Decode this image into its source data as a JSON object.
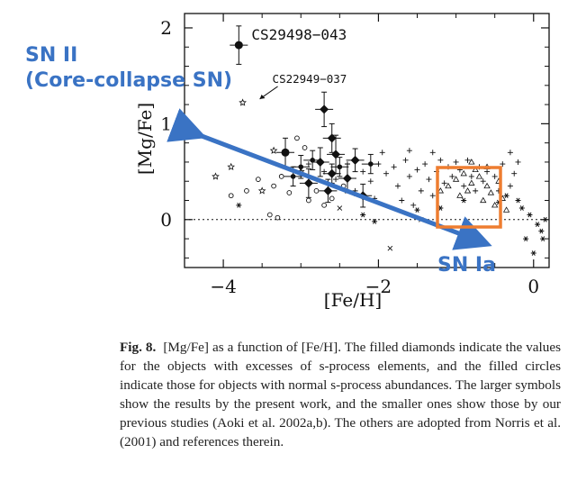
{
  "chart_data": {
    "type": "scatter",
    "title": "",
    "xlabel": "[Fe/H]",
    "ylabel": "[Mg/Fe]",
    "xlim": [
      -4.5,
      0.2
    ],
    "ylim": [
      -0.5,
      2.15
    ],
    "x_ticks": [
      -4,
      -2,
      0
    ],
    "y_ticks": [
      0,
      1,
      2
    ],
    "x_tick_labels": [
      "−4",
      "−2",
      "0"
    ],
    "y_tick_labels": [
      "0",
      "1",
      "2"
    ],
    "reference_line_y": 0,
    "star_labels": [
      {
        "text": "CS29498−043",
        "x": -3.8,
        "y": 1.82
      },
      {
        "text": "CS22949−037",
        "x": -3.6,
        "y": 1.22
      }
    ],
    "series": [
      {
        "marker": "filled-diamond",
        "points": [
          {
            "x": -2.7,
            "y": 1.15,
            "err": 0.18
          },
          {
            "x": -2.6,
            "y": 0.85,
            "err": 0.15
          },
          {
            "x": -2.55,
            "y": 0.68,
            "err": 0.2
          },
          {
            "x": -2.75,
            "y": 0.6,
            "err": 0.15
          },
          {
            "x": -2.3,
            "y": 0.62,
            "err": 0.12
          },
          {
            "x": -2.4,
            "y": 0.43,
            "err": 0.15
          },
          {
            "x": -2.6,
            "y": 0.48,
            "err": 0.1
          },
          {
            "x": -2.9,
            "y": 0.38,
            "err": 0.15
          },
          {
            "x": -2.65,
            "y": 0.3,
            "err": 0.12
          },
          {
            "x": -2.2,
            "y": 0.25,
            "err": 0.12
          }
        ]
      },
      {
        "marker": "filled-circle-large",
        "points": [
          {
            "x": -3.8,
            "y": 1.82,
            "err": 0.2
          },
          {
            "x": -3.2,
            "y": 0.7,
            "err": 0.15
          }
        ]
      },
      {
        "marker": "filled-circle-small",
        "points": [
          {
            "x": -3.0,
            "y": 0.55,
            "err": 0.12
          },
          {
            "x": -2.85,
            "y": 0.62,
            "err": 0.1
          },
          {
            "x": -2.5,
            "y": 0.55,
            "err": 0.1
          },
          {
            "x": -2.1,
            "y": 0.58,
            "err": 0.1
          },
          {
            "x": -3.1,
            "y": 0.45,
            "err": 0.1
          }
        ]
      },
      {
        "marker": "open-circle",
        "points": [
          {
            "x": -3.9,
            "y": 0.25
          },
          {
            "x": -3.7,
            "y": 0.3
          },
          {
            "x": -3.55,
            "y": 0.42
          },
          {
            "x": -3.35,
            "y": 0.35
          },
          {
            "x": -3.25,
            "y": 0.45
          },
          {
            "x": -3.05,
            "y": 0.85
          },
          {
            "x": -2.95,
            "y": 0.75
          },
          {
            "x": -2.9,
            "y": 0.2
          },
          {
            "x": -2.8,
            "y": 0.3
          },
          {
            "x": -3.4,
            "y": 0.05
          },
          {
            "x": -3.3,
            "y": 0.02
          },
          {
            "x": -2.7,
            "y": 0.15
          },
          {
            "x": -2.6,
            "y": 0.22
          },
          {
            "x": -2.45,
            "y": 0.35
          },
          {
            "x": -3.15,
            "y": 0.28
          }
        ]
      },
      {
        "marker": "open-star",
        "points": [
          {
            "x": -3.75,
            "y": 1.22
          },
          {
            "x": -4.1,
            "y": 0.45
          },
          {
            "x": -3.9,
            "y": 0.55
          },
          {
            "x": -3.5,
            "y": 0.3
          },
          {
            "x": -3.35,
            "y": 0.72
          },
          {
            "x": -3.0,
            "y": 0.5
          }
        ]
      },
      {
        "marker": "open-triangle",
        "points": [
          {
            "x": -1.0,
            "y": 0.42
          },
          {
            "x": -0.9,
            "y": 0.48
          },
          {
            "x": -0.8,
            "y": 0.38
          },
          {
            "x": -0.7,
            "y": 0.45
          },
          {
            "x": -0.6,
            "y": 0.35
          },
          {
            "x": -0.85,
            "y": 0.3
          },
          {
            "x": -0.75,
            "y": 0.52
          },
          {
            "x": -0.55,
            "y": 0.28
          },
          {
            "x": -0.65,
            "y": 0.2
          },
          {
            "x": -0.95,
            "y": 0.25
          },
          {
            "x": -0.45,
            "y": 0.4
          },
          {
            "x": -0.5,
            "y": 0.15
          },
          {
            "x": -1.1,
            "y": 0.35
          },
          {
            "x": -0.4,
            "y": 0.22
          },
          {
            "x": -0.35,
            "y": 0.1
          },
          {
            "x": -0.8,
            "y": 0.6
          },
          {
            "x": -0.6,
            "y": 0.55
          },
          {
            "x": -1.2,
            "y": 0.3
          }
        ]
      },
      {
        "marker": "plus",
        "points": [
          {
            "x": -2.9,
            "y": 0.58
          },
          {
            "x": -2.7,
            "y": 0.5
          },
          {
            "x": -2.55,
            "y": 0.42
          },
          {
            "x": -2.4,
            "y": 0.58
          },
          {
            "x": -2.2,
            "y": 0.5
          },
          {
            "x": -2.1,
            "y": 0.4
          },
          {
            "x": -2.0,
            "y": 0.58
          },
          {
            "x": -1.9,
            "y": 0.48
          },
          {
            "x": -1.8,
            "y": 0.55
          },
          {
            "x": -1.75,
            "y": 0.35
          },
          {
            "x": -1.65,
            "y": 0.62
          },
          {
            "x": -1.6,
            "y": 0.45
          },
          {
            "x": -1.5,
            "y": 0.52
          },
          {
            "x": -1.45,
            "y": 0.3
          },
          {
            "x": -1.4,
            "y": 0.58
          },
          {
            "x": -1.35,
            "y": 0.42
          },
          {
            "x": -1.3,
            "y": 0.25
          },
          {
            "x": -1.25,
            "y": 0.5
          },
          {
            "x": -1.2,
            "y": 0.62
          },
          {
            "x": -1.15,
            "y": 0.38
          },
          {
            "x": -1.1,
            "y": 0.55
          },
          {
            "x": -1.05,
            "y": 0.45
          },
          {
            "x": -1.0,
            "y": 0.6
          },
          {
            "x": -0.95,
            "y": 0.52
          },
          {
            "x": -0.9,
            "y": 0.35
          },
          {
            "x": -0.85,
            "y": 0.62
          },
          {
            "x": -0.8,
            "y": 0.45
          },
          {
            "x": -0.75,
            "y": 0.3
          },
          {
            "x": -0.7,
            "y": 0.55
          },
          {
            "x": -0.65,
            "y": 0.4
          },
          {
            "x": -0.6,
            "y": 0.5
          },
          {
            "x": -0.5,
            "y": 0.45
          },
          {
            "x": -0.45,
            "y": 0.3
          },
          {
            "x": -0.4,
            "y": 0.58
          },
          {
            "x": -0.3,
            "y": 0.35
          },
          {
            "x": -0.25,
            "y": 0.48
          },
          {
            "x": -1.7,
            "y": 0.2
          },
          {
            "x": -1.55,
            "y": 0.15
          },
          {
            "x": -2.3,
            "y": 0.3
          },
          {
            "x": -2.05,
            "y": 0.22
          },
          {
            "x": -1.95,
            "y": 0.7
          },
          {
            "x": -1.6,
            "y": 0.72
          },
          {
            "x": -0.3,
            "y": 0.7
          },
          {
            "x": -0.2,
            "y": 0.6
          },
          {
            "x": -1.3,
            "y": 0.7
          }
        ]
      },
      {
        "marker": "asterisk",
        "points": [
          {
            "x": -3.8,
            "y": 0.15
          },
          {
            "x": -2.2,
            "y": 0.05
          },
          {
            "x": -2.05,
            "y": -0.02
          },
          {
            "x": -1.5,
            "y": 0.1
          },
          {
            "x": -1.2,
            "y": 0.12
          },
          {
            "x": -0.9,
            "y": 0.2
          },
          {
            "x": -0.2,
            "y": 0.2
          },
          {
            "x": -0.15,
            "y": 0.12
          },
          {
            "x": -0.05,
            "y": 0.05
          },
          {
            "x": 0.05,
            "y": -0.05
          },
          {
            "x": 0.1,
            "y": -0.12
          },
          {
            "x": 0.15,
            "y": 0.0
          },
          {
            "x": -0.1,
            "y": -0.2
          },
          {
            "x": 0.0,
            "y": -0.35
          },
          {
            "x": -0.35,
            "y": 0.25
          },
          {
            "x": -0.45,
            "y": 0.18
          },
          {
            "x": 0.12,
            "y": -0.2
          }
        ]
      },
      {
        "marker": "cross",
        "points": [
          {
            "x": -1.85,
            "y": -0.3
          },
          {
            "x": -1.45,
            "y": 0.0
          },
          {
            "x": -2.5,
            "y": 0.12
          }
        ]
      }
    ]
  },
  "annotations": {
    "sn2_line1": "SN II",
    "sn2_line2": "(Core-collapse SN)",
    "sn1a": "SN Ia",
    "box_color": "#ee7d30",
    "arrow_color": "#3a73c4"
  },
  "caption": {
    "label": "Fig. 8.",
    "text": "[Mg/Fe] as a function of [Fe/H]. The filled diamonds indicate the values for the objects with excesses of s-process elements, and the filled circles indicate those for objects with normal s-process abundances. The larger symbols show the results by the present work, and the smaller ones show those by our previous studies (Aoki et al. 2002a,b). The others are adopted from Norris et al. (2001) and references therein."
  }
}
